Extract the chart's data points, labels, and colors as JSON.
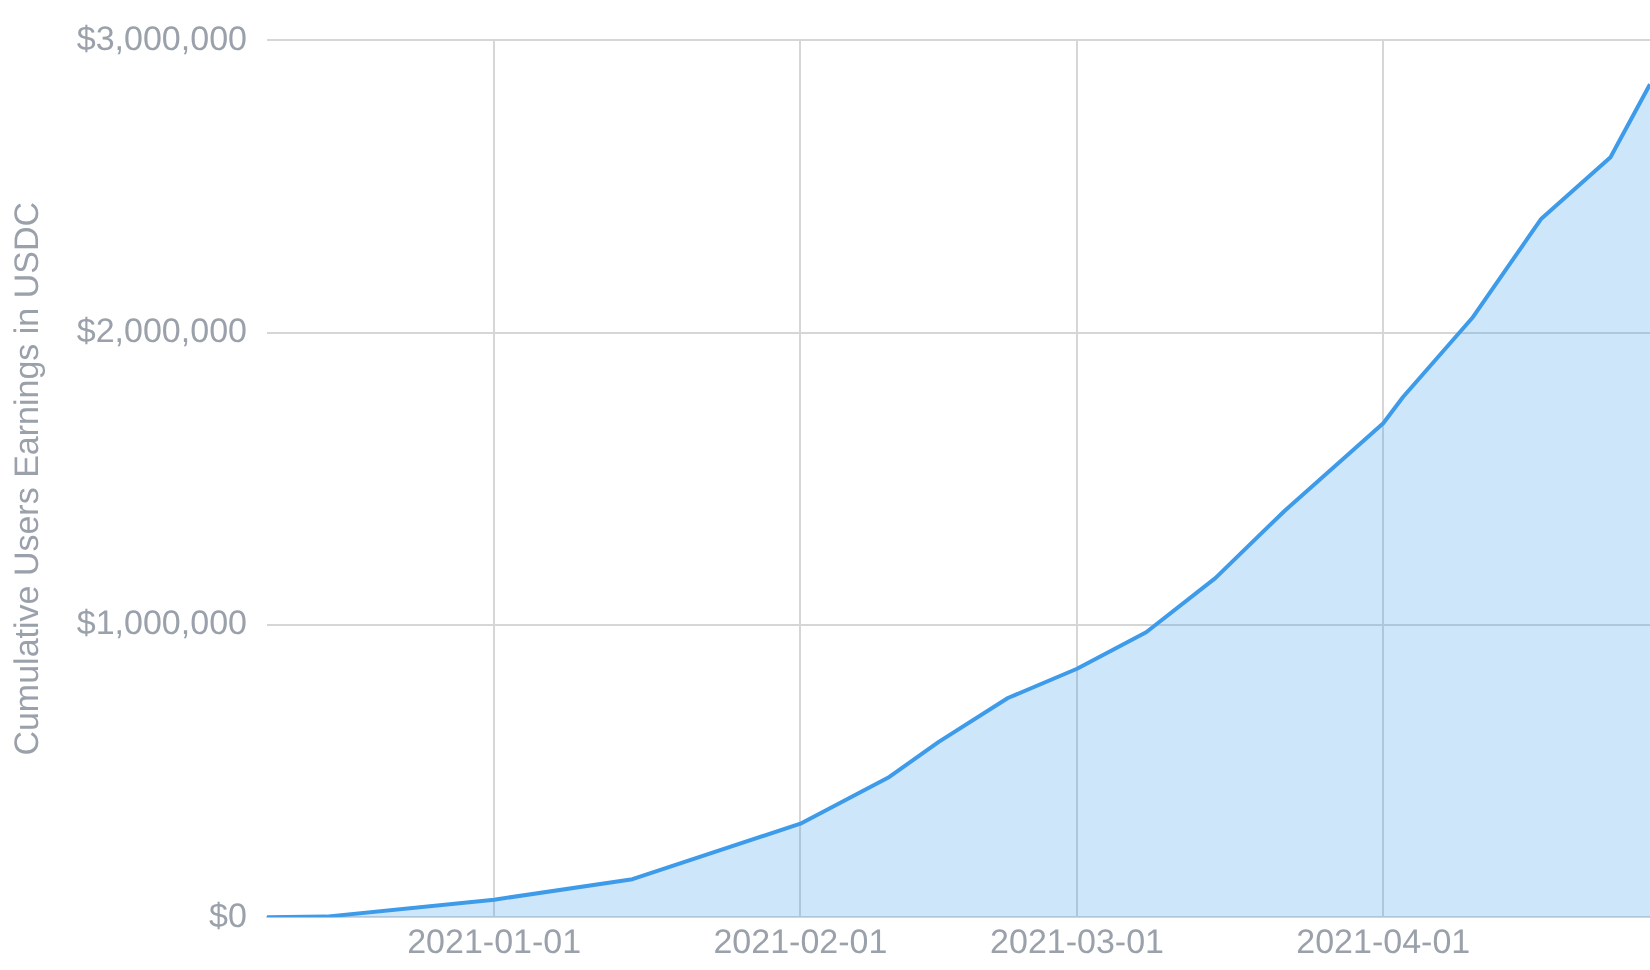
{
  "chart_data": {
    "type": "area",
    "ylabel": "Cumulative Users Earnings in USDC",
    "x": [
      "2020-12-09",
      "2020-12-15",
      "2021-01-01",
      "2021-01-15",
      "2021-02-01",
      "2021-02-10",
      "2021-02-15",
      "2021-02-22",
      "2021-03-01",
      "2021-03-08",
      "2021-03-15",
      "2021-03-22",
      "2021-04-01",
      "2021-04-03",
      "2021-04-10",
      "2021-04-17",
      "2021-04-24",
      "2021-04-28"
    ],
    "series": [
      {
        "color": "#3d9be9",
        "values": [
          0,
          2000,
          60000,
          130000,
          320000,
          480000,
          600000,
          750000,
          850000,
          975000,
          1160000,
          1390000,
          1690000,
          1780000,
          2050000,
          2390000,
          2600000,
          2850000
        ]
      }
    ],
    "xlim": [
      "2020-12-09",
      "2021-04-28"
    ],
    "xticks": [
      "2021-01-01",
      "2021-02-01",
      "2021-03-01",
      "2021-04-01"
    ],
    "ylim": [
      0,
      3000000
    ],
    "yticks": [
      {
        "value": 0,
        "label": "$0"
      },
      {
        "value": 1000000,
        "label": "$1,000,000"
      },
      {
        "value": 2000000,
        "label": "$2,000,000"
      },
      {
        "value": 3000000,
        "label": "$3,000,000"
      }
    ],
    "grid": true,
    "legend": false
  }
}
